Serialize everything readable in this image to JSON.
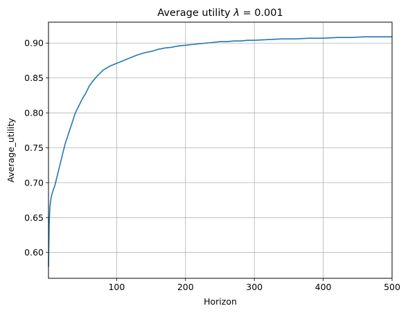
{
  "chart_data": {
    "type": "line",
    "title": "Average utility λ = 0.001",
    "title_prefix": "Average utility ",
    "title_lambda": "λ",
    "title_suffix": " = 0.001",
    "xlabel": "Horizon",
    "ylabel": "Average_utility",
    "xlim": [
      1,
      500
    ],
    "ylim": [
      0.563,
      0.93
    ],
    "xticks": [
      100,
      200,
      300,
      400,
      500
    ],
    "xtick_labels": [
      "100",
      "200",
      "300",
      "400",
      "500"
    ],
    "yticks": [
      0.6,
      0.65,
      0.7,
      0.75,
      0.8,
      0.85,
      0.9
    ],
    "ytick_labels": [
      "0.60",
      "0.65",
      "0.70",
      "0.75",
      "0.80",
      "0.85",
      "0.90"
    ],
    "grid": true,
    "series": [
      {
        "color": "#1f77b4",
        "x": [
          1,
          2,
          3,
          5,
          8,
          10,
          15,
          20,
          25,
          30,
          35,
          40,
          45,
          50,
          55,
          60,
          65,
          70,
          75,
          80,
          85,
          90,
          95,
          100,
          110,
          120,
          130,
          140,
          150,
          160,
          170,
          180,
          190,
          200,
          210,
          220,
          230,
          240,
          250,
          260,
          270,
          280,
          290,
          300,
          320,
          340,
          360,
          380,
          400,
          420,
          440,
          460,
          480,
          500
        ],
        "y": [
          0.58,
          0.64,
          0.665,
          0.68,
          0.69,
          0.695,
          0.715,
          0.735,
          0.755,
          0.77,
          0.785,
          0.8,
          0.81,
          0.82,
          0.828,
          0.838,
          0.845,
          0.851,
          0.856,
          0.861,
          0.864,
          0.867,
          0.869,
          0.871,
          0.875,
          0.879,
          0.883,
          0.886,
          0.888,
          0.891,
          0.893,
          0.894,
          0.896,
          0.897,
          0.898,
          0.899,
          0.9,
          0.901,
          0.902,
          0.902,
          0.903,
          0.903,
          0.904,
          0.904,
          0.905,
          0.906,
          0.906,
          0.907,
          0.907,
          0.908,
          0.908,
          0.909,
          0.909,
          0.909
        ]
      }
    ]
  }
}
